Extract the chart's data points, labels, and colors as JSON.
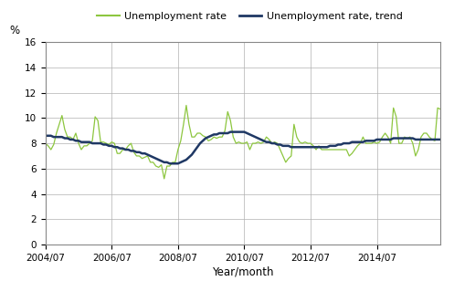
{
  "ylabel": "%",
  "xlabel": "Year/month",
  "legend_labels": [
    "Unemployment rate",
    "Unemployment rate, trend"
  ],
  "line_color_raw": "#8DC63F",
  "line_color_trend": "#1F3864",
  "ylim": [
    0,
    16
  ],
  "yticks": [
    0,
    2,
    4,
    6,
    8,
    10,
    12,
    14,
    16
  ],
  "xtick_labels": [
    "2004/07",
    "2006/07",
    "2008/07",
    "2010/07",
    "2012/07",
    "2014/07"
  ],
  "background_color": "#ffffff",
  "grid_color": "#b0b0b0",
  "raw_data": [
    8.0,
    7.8,
    7.5,
    7.9,
    8.8,
    9.5,
    10.2,
    9.1,
    8.5,
    8.5,
    8.3,
    8.8,
    8.0,
    7.5,
    7.8,
    7.8,
    8.0,
    8.2,
    10.1,
    9.8,
    8.1,
    8.1,
    8.0,
    7.9,
    8.1,
    8.0,
    7.2,
    7.2,
    7.5,
    7.5,
    7.8,
    8.0,
    7.3,
    7.0,
    7.0,
    6.8,
    6.9,
    7.0,
    6.5,
    6.5,
    6.2,
    6.1,
    6.3,
    5.2,
    6.2,
    6.2,
    6.5,
    6.5,
    7.5,
    8.2,
    9.5,
    11.0,
    9.5,
    8.5,
    8.5,
    8.8,
    8.8,
    8.6,
    8.5,
    8.2,
    8.3,
    8.5,
    8.4,
    8.5,
    8.5,
    9.0,
    10.5,
    9.8,
    8.5,
    8.0,
    8.1,
    8.0,
    8.0,
    8.1,
    7.5,
    8.0,
    8.0,
    8.1,
    8.0,
    8.1,
    8.5,
    8.3,
    8.0,
    8.1,
    8.0,
    7.5,
    7.0,
    6.5,
    6.8,
    7.0,
    9.5,
    8.5,
    8.1,
    8.0,
    8.1,
    8.0,
    8.0,
    7.8,
    7.5,
    7.8,
    7.5,
    7.5,
    7.5,
    7.5,
    7.5,
    7.5,
    7.5,
    7.5,
    7.5,
    7.5,
    7.0,
    7.2,
    7.5,
    7.8,
    8.0,
    8.5,
    8.0,
    8.0,
    8.0,
    8.1,
    8.0,
    8.1,
    8.5,
    8.8,
    8.5,
    8.0,
    10.8,
    10.1,
    8.0,
    8.0,
    8.5,
    8.4,
    8.5,
    8.0,
    7.0,
    7.5,
    8.5,
    8.8,
    8.8,
    8.5,
    8.3,
    8.2,
    10.8,
    10.7
  ],
  "trend_data": [
    8.6,
    8.6,
    8.6,
    8.5,
    8.5,
    8.5,
    8.5,
    8.4,
    8.4,
    8.3,
    8.3,
    8.2,
    8.2,
    8.1,
    8.1,
    8.1,
    8.1,
    8.0,
    8.0,
    8.0,
    8.0,
    7.9,
    7.9,
    7.8,
    7.8,
    7.7,
    7.7,
    7.6,
    7.6,
    7.5,
    7.5,
    7.4,
    7.4,
    7.3,
    7.3,
    7.2,
    7.2,
    7.1,
    7.0,
    6.9,
    6.8,
    6.7,
    6.6,
    6.5,
    6.5,
    6.4,
    6.4,
    6.4,
    6.4,
    6.5,
    6.6,
    6.7,
    6.9,
    7.1,
    7.4,
    7.7,
    8.0,
    8.2,
    8.4,
    8.5,
    8.6,
    8.7,
    8.7,
    8.8,
    8.8,
    8.8,
    8.8,
    8.9,
    8.9,
    8.9,
    8.9,
    8.9,
    8.9,
    8.8,
    8.7,
    8.6,
    8.5,
    8.4,
    8.3,
    8.2,
    8.1,
    8.1,
    8.0,
    8.0,
    7.9,
    7.9,
    7.8,
    7.8,
    7.8,
    7.7,
    7.7,
    7.7,
    7.7,
    7.7,
    7.7,
    7.7,
    7.7,
    7.7,
    7.7,
    7.7,
    7.7,
    7.7,
    7.7,
    7.8,
    7.8,
    7.8,
    7.9,
    7.9,
    8.0,
    8.0,
    8.0,
    8.1,
    8.1,
    8.1,
    8.1,
    8.1,
    8.2,
    8.2,
    8.2,
    8.2,
    8.3,
    8.3,
    8.3,
    8.3,
    8.3,
    8.3,
    8.4,
    8.4,
    8.4,
    8.4,
    8.4,
    8.4,
    8.4,
    8.4,
    8.3,
    8.3,
    8.3,
    8.3,
    8.3,
    8.3,
    8.3,
    8.3,
    8.3,
    8.3
  ]
}
